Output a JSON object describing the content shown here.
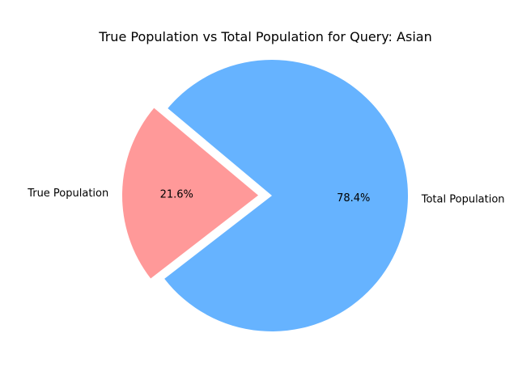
{
  "chart_data": {
    "type": "pie",
    "title": "True Population vs Total Population for Query: Asian",
    "categories": [
      "True Population",
      "Total Population"
    ],
    "values": [
      21.6,
      78.4
    ],
    "percent_labels": [
      "21.6%",
      "78.4%"
    ],
    "colors": [
      "#ff9999",
      "#66b3ff"
    ],
    "exploded": [
      "True Population"
    ],
    "legend": "none"
  }
}
